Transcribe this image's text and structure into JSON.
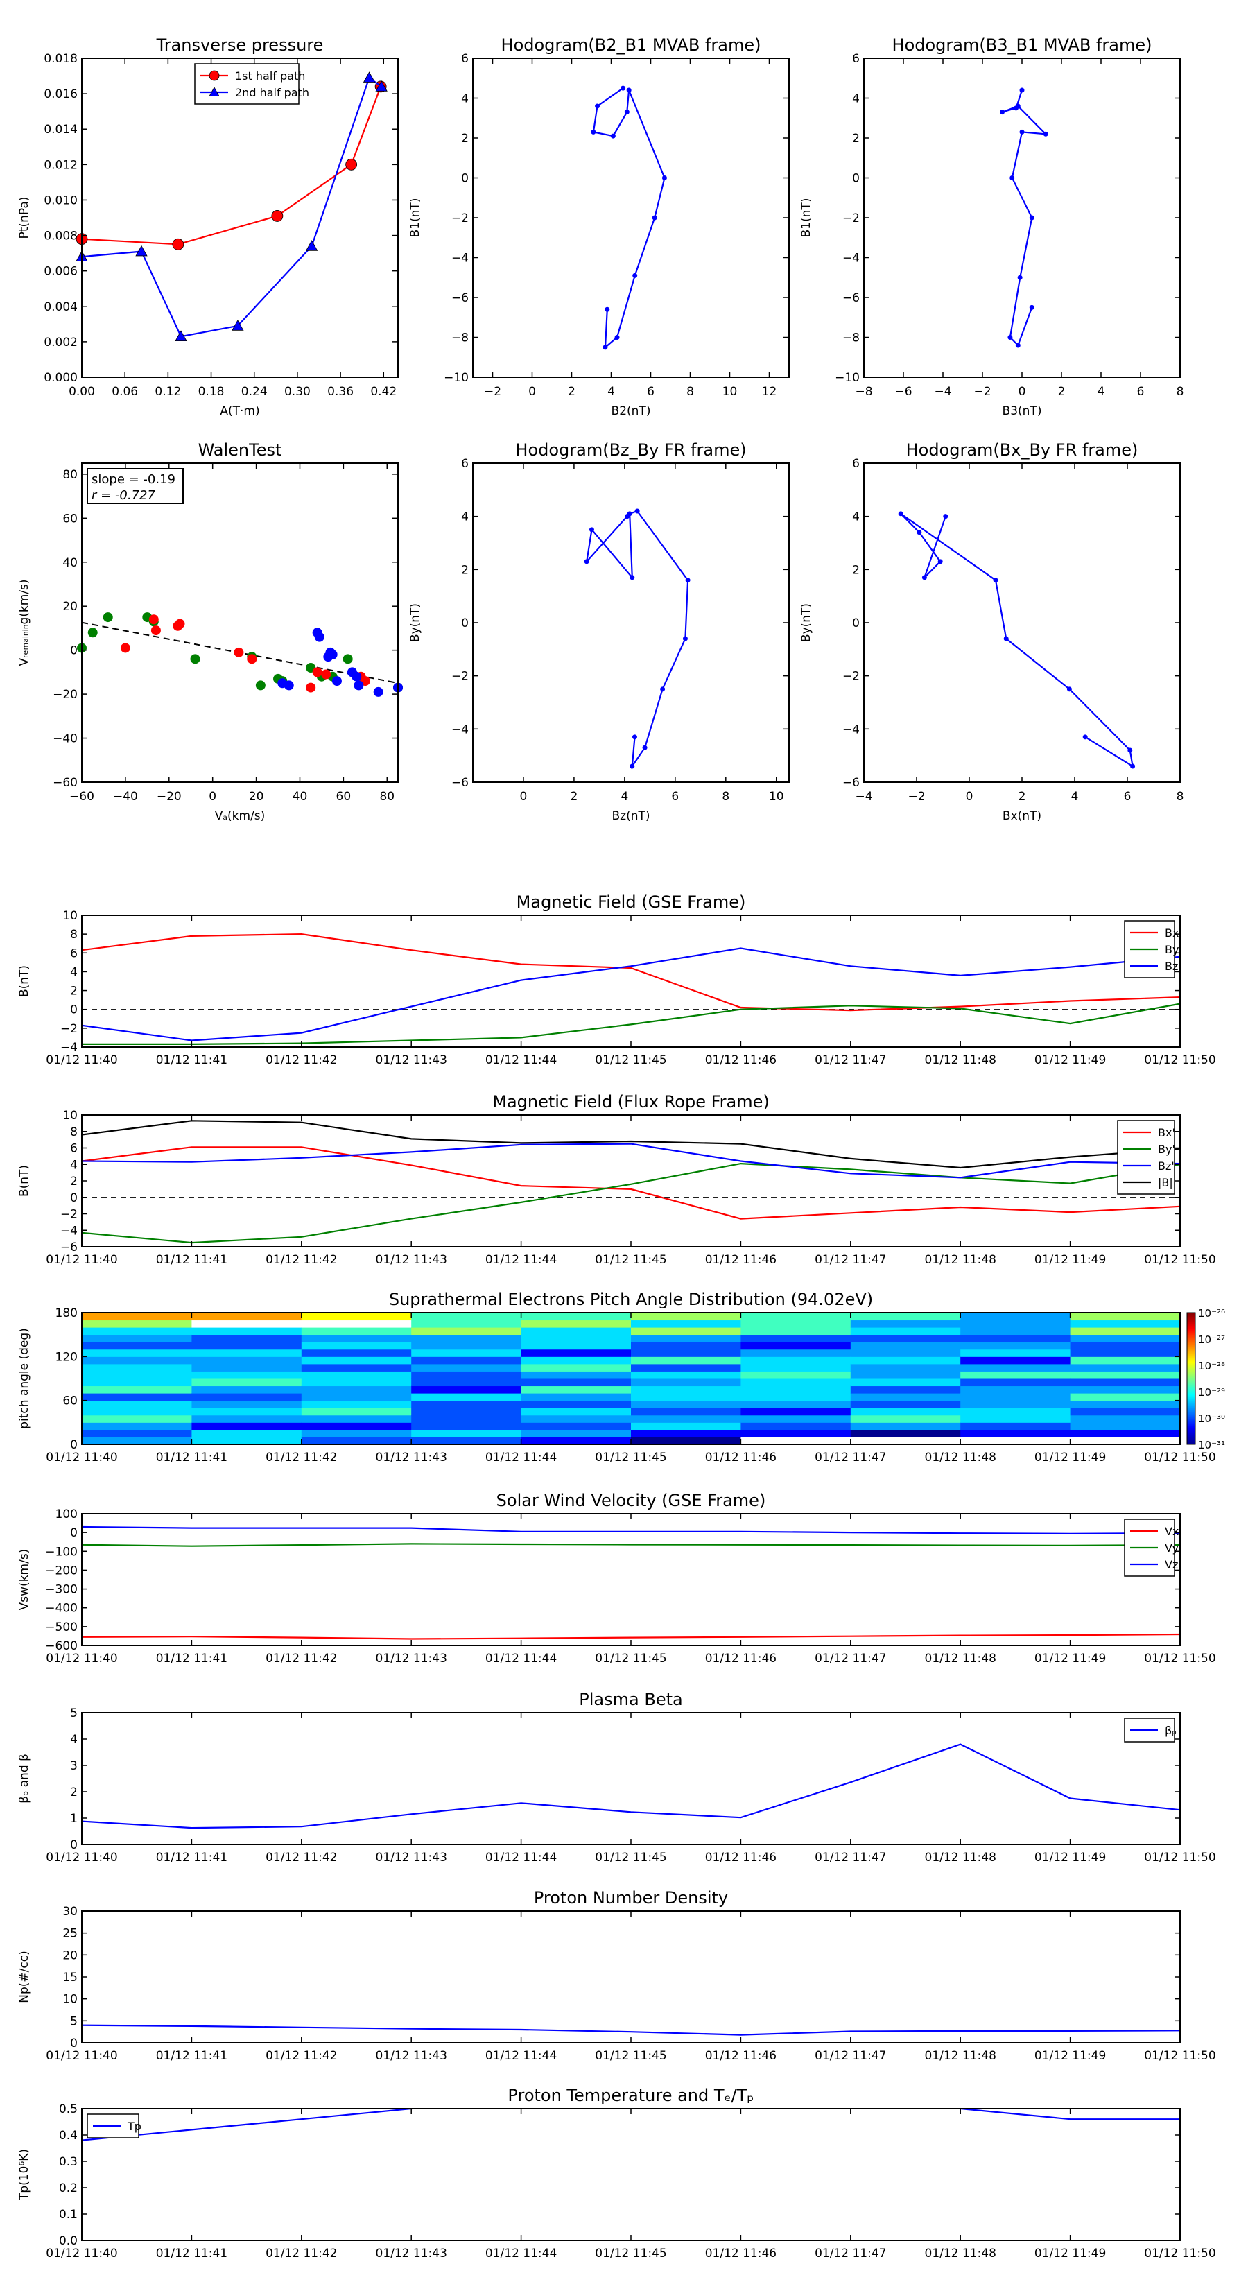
{
  "colors": {
    "red": "#ff0000",
    "green": "#008000",
    "blue": "#0000ff",
    "black": "#000000",
    "grid": "#808080"
  },
  "time_ticks": [
    "01/12 11:40",
    "01/12 11:41",
    "01/12 11:42",
    "01/12 11:43",
    "01/12 11:44",
    "01/12 11:45",
    "01/12 11:46",
    "01/12 11:47",
    "01/12 11:48",
    "01/12 11:49",
    "01/12 11:50"
  ],
  "chart_data": [
    {
      "id": "tp",
      "type": "line",
      "title": "Transverse pressure",
      "xlabel": "A(T·m)",
      "ylabel": "Pt(nPa)",
      "xlim": [
        0,
        0.44
      ],
      "ylim": [
        0,
        0.018
      ],
      "xticks": [
        0,
        0.06,
        0.12,
        0.18,
        0.24,
        0.3,
        0.36,
        0.42
      ],
      "xtick_labels": [
        "0.00",
        "0.06",
        "0.12",
        "0.18",
        "0.24",
        "0.30",
        "0.36",
        "0.42"
      ],
      "yticks": [
        0,
        0.002,
        0.004,
        0.006,
        0.008,
        0.01,
        0.012,
        0.014,
        0.016,
        0.018
      ],
      "ytick_labels": [
        "0.000",
        "0.002",
        "0.004",
        "0.006",
        "0.008",
        "0.010",
        "0.012",
        "0.014",
        "0.016",
        "0.018"
      ],
      "legend": "top-center",
      "series": [
        {
          "name": "1st half path",
          "color": "#ff0000",
          "marker": "circle",
          "x": [
            0.0,
            0.134,
            0.272,
            0.375,
            0.416
          ],
          "y": [
            0.0078,
            0.0075,
            0.0091,
            0.012,
            0.0164
          ]
        },
        {
          "name": "2nd half path",
          "color": "#0000ff",
          "marker": "triangle",
          "x": [
            0.0,
            0.083,
            0.138,
            0.217,
            0.32,
            0.4,
            0.417
          ],
          "y": [
            0.0068,
            0.0071,
            0.0023,
            0.0029,
            0.0074,
            0.0169,
            0.0164
          ]
        }
      ]
    },
    {
      "id": "h1",
      "type": "line",
      "title": "Hodogram(B2_B1 MVAB frame)",
      "xlabel": "B2(nT)",
      "ylabel": "B1(nT)",
      "xlim": [
        -3,
        13
      ],
      "ylim": [
        -10,
        6
      ],
      "xticks": [
        -2,
        0,
        2,
        4,
        6,
        8,
        10,
        12
      ],
      "xtick_labels": [
        "−2",
        "0",
        "2",
        "4",
        "6",
        "8",
        "10",
        "12"
      ],
      "yticks": [
        -10,
        -8,
        -6,
        -4,
        -2,
        0,
        2,
        4,
        6
      ],
      "ytick_labels": [
        "−10",
        "−8",
        "−6",
        "−4",
        "−2",
        "0",
        "2",
        "4",
        "6"
      ],
      "series": [
        {
          "name": "",
          "color": "#0000ff",
          "x": [
            3.8,
            3.7,
            4.3,
            5.2,
            6.2,
            6.7,
            4.9,
            4.8,
            4.1,
            3.1,
            3.3,
            4.6
          ],
          "y": [
            -6.6,
            -8.5,
            -8.0,
            -4.9,
            -2.0,
            0.0,
            4.4,
            3.3,
            2.1,
            2.3,
            3.6,
            4.5
          ]
        }
      ]
    },
    {
      "id": "h2",
      "type": "line",
      "title": "Hodogram(B3_B1 MVAB frame)",
      "xlabel": "B3(nT)",
      "ylabel": "B1(nT)",
      "xlim": [
        -8,
        8
      ],
      "ylim": [
        -10,
        6
      ],
      "xticks": [
        -8,
        -6,
        -4,
        -2,
        0,
        2,
        4,
        6,
        8
      ],
      "xtick_labels": [
        "−8",
        "−6",
        "−4",
        "−2",
        "0",
        "2",
        "4",
        "6",
        "8"
      ],
      "yticks": [
        -10,
        -8,
        -6,
        -4,
        -2,
        0,
        2,
        4,
        6
      ],
      "ytick_labels": [
        "−10",
        "−8",
        "−6",
        "−4",
        "−2",
        "0",
        "2",
        "4",
        "6"
      ],
      "series": [
        {
          "name": "",
          "color": "#0000ff",
          "x": [
            0.5,
            -0.2,
            -0.6,
            -0.1,
            0.5,
            -0.5,
            0.0,
            1.2,
            -0.2,
            -1.0,
            -0.3,
            0.0
          ],
          "y": [
            -6.5,
            -8.4,
            -8.0,
            -5.0,
            -2.0,
            0.0,
            2.3,
            2.2,
            3.6,
            3.3,
            3.5,
            4.4
          ]
        }
      ]
    },
    {
      "id": "walen",
      "type": "scatter",
      "title": "WalenTest",
      "xlabel": "Vₐ(km/s)",
      "ylabel": "Vᵣₑₘₐᵢₙᵢₙg(km/s)",
      "xlim": [
        -60,
        85
      ],
      "ylim": [
        -60,
        85
      ],
      "xticks": [
        -60,
        -40,
        -20,
        0,
        20,
        40,
        60,
        80
      ],
      "xtick_labels": [
        "−60",
        "−40",
        "−20",
        "0",
        "20",
        "40",
        "60",
        "80"
      ],
      "yticks": [
        -60,
        -40,
        -20,
        0,
        20,
        40,
        60,
        80
      ],
      "ytick_labels": [
        "−60",
        "−40",
        "−20",
        "0",
        "20",
        "40",
        "60",
        "80"
      ],
      "annotation": [
        "slope = -0.19",
        "r = -0.727"
      ],
      "fit": {
        "slope": -0.19,
        "intercept": 1.2,
        "color": "#000000"
      },
      "series": [
        {
          "name": "",
          "color": "#008000",
          "x": [
            -60,
            -55,
            -48,
            -30,
            -27,
            -8,
            18,
            22,
            30,
            32,
            45,
            50,
            55,
            62,
            85
          ],
          "y": [
            1,
            8,
            15,
            15,
            13,
            -4,
            -3,
            -16,
            -13,
            -14,
            -8,
            -12,
            -12,
            -4,
            -17
          ]
        },
        {
          "name": "",
          "color": "#ff0000",
          "x": [
            -40,
            -27,
            -26,
            -16,
            -15,
            12,
            18,
            45,
            48,
            52,
            68,
            70
          ],
          "y": [
            1,
            14,
            9,
            11,
            12,
            -1,
            -4,
            -17,
            -10,
            -11,
            -12,
            -14
          ]
        },
        {
          "name": "",
          "color": "#0000ff",
          "x": [
            32,
            35,
            48,
            49,
            53,
            54,
            55,
            57,
            64,
            66,
            67,
            76,
            85
          ],
          "y": [
            -15,
            -16,
            8,
            6,
            -3,
            -1,
            -2,
            -14,
            -10,
            -12,
            -16,
            -19,
            -17
          ]
        }
      ]
    },
    {
      "id": "h3",
      "type": "line",
      "title": "Hodogram(Bz_By FR frame)",
      "xlabel": "Bz(nT)",
      "ylabel": "By(nT)",
      "xlim": [
        -2,
        10.5
      ],
      "ylim": [
        -6,
        6
      ],
      "xticks": [
        0,
        2,
        4,
        6,
        8,
        10
      ],
      "xtick_labels": [
        "0",
        "2",
        "4",
        "6",
        "8",
        "10"
      ],
      "yticks": [
        -6,
        -4,
        -2,
        0,
        2,
        4,
        6
      ],
      "ytick_labels": [
        "−6",
        "−4",
        "−2",
        "0",
        "2",
        "4",
        "6"
      ],
      "series": [
        {
          "name": "",
          "color": "#0000ff",
          "x": [
            4.4,
            4.3,
            4.8,
            5.5,
            6.4,
            6.5,
            4.5,
            4.2,
            4.3,
            2.7,
            2.5,
            4.1
          ],
          "y": [
            -4.3,
            -5.4,
            -4.7,
            -2.5,
            -0.6,
            1.6,
            4.2,
            4.1,
            1.7,
            3.5,
            2.3,
            4.0
          ]
        }
      ]
    },
    {
      "id": "h4",
      "type": "line",
      "title": "Hodogram(Bx_By FR frame)",
      "xlabel": "Bx(nT)",
      "ylabel": "By(nT)",
      "xlim": [
        -4,
        8
      ],
      "ylim": [
        -6,
        6
      ],
      "xticks": [
        -4,
        -2,
        0,
        2,
        4,
        6,
        8
      ],
      "xtick_labels": [
        "−4",
        "−2",
        "0",
        "2",
        "4",
        "6",
        "8"
      ],
      "yticks": [
        -6,
        -4,
        -2,
        0,
        2,
        4,
        6
      ],
      "ytick_labels": [
        "−6",
        "−4",
        "−2",
        "0",
        "2",
        "4",
        "6"
      ],
      "series": [
        {
          "name": "",
          "color": "#0000ff",
          "x": [
            4.4,
            6.2,
            6.1,
            3.8,
            1.4,
            1.0,
            -2.6,
            -1.9,
            -1.1,
            -1.7,
            -0.9
          ],
          "y": [
            -4.3,
            -5.4,
            -4.8,
            -2.5,
            -0.6,
            1.6,
            4.1,
            3.4,
            2.3,
            1.7,
            4.0
          ]
        }
      ]
    },
    {
      "id": "bgse",
      "type": "line",
      "title": "Magnetic Field (GSE Frame)",
      "ylabel": "B(nT)",
      "xlim": [
        0,
        10
      ],
      "ylim": [
        -4,
        10
      ],
      "yticks": [
        -4,
        -2,
        0,
        2,
        4,
        6,
        8,
        10
      ],
      "ytick_labels": [
        "−4",
        "−2",
        "0",
        "2",
        "4",
        "6",
        "8",
        "10"
      ],
      "zero_line": true,
      "legend": "top-right",
      "x": [
        0,
        1,
        2,
        3,
        4,
        5,
        6,
        7,
        8,
        9,
        10
      ],
      "series": [
        {
          "name": "Bx",
          "color": "#ff0000",
          "values": [
            6.3,
            7.8,
            8.0,
            6.3,
            4.8,
            4.4,
            0.2,
            -0.1,
            0.3,
            0.9,
            1.3
          ]
        },
        {
          "name": "By",
          "color": "#008000",
          "values": [
            -3.7,
            -3.7,
            -3.6,
            -3.3,
            -3.0,
            -1.6,
            0.0,
            0.4,
            0.1,
            -1.5,
            0.6
          ]
        },
        {
          "name": "Bz",
          "color": "#0000ff",
          "values": [
            -1.7,
            -3.3,
            -2.5,
            0.3,
            3.1,
            4.6,
            6.5,
            4.6,
            3.6,
            4.5,
            5.6
          ]
        }
      ]
    },
    {
      "id": "bfr",
      "type": "line",
      "title": "Magnetic Field (Flux Rope Frame)",
      "ylabel": "B(nT)",
      "xlim": [
        0,
        10
      ],
      "ylim": [
        -6,
        10
      ],
      "yticks": [
        -6,
        -4,
        -2,
        0,
        2,
        4,
        6,
        8,
        10
      ],
      "ytick_labels": [
        "−6",
        "−4",
        "−2",
        "0",
        "2",
        "4",
        "6",
        "8",
        "10"
      ],
      "zero_line": true,
      "legend": "top-right",
      "x": [
        0,
        1,
        2,
        3,
        4,
        5,
        6,
        7,
        8,
        9,
        10
      ],
      "series": [
        {
          "name": "Bx'",
          "color": "#ff0000",
          "values": [
            4.4,
            6.1,
            6.1,
            3.9,
            1.4,
            1.0,
            -2.6,
            -1.9,
            -1.2,
            -1.8,
            -1.1
          ]
        },
        {
          "name": "By'",
          "color": "#008000",
          "values": [
            -4.3,
            -5.5,
            -4.8,
            -2.6,
            -0.6,
            1.6,
            4.1,
            3.4,
            2.4,
            1.7,
            4.0
          ]
        },
        {
          "name": "Bz'",
          "color": "#0000ff",
          "values": [
            4.4,
            4.3,
            4.8,
            5.5,
            6.4,
            6.5,
            4.4,
            2.9,
            2.4,
            4.3,
            4.1
          ]
        },
        {
          "name": "|B|",
          "color": "#000000",
          "values": [
            7.6,
            9.3,
            9.1,
            7.1,
            6.6,
            6.8,
            6.5,
            4.7,
            3.6,
            4.9,
            5.9
          ]
        }
      ]
    },
    {
      "id": "pad",
      "type": "heatmap",
      "title": "Suprathermal Electrons Pitch Angle Distribution (94.02eV)",
      "ylabel": "pitch angle (deg)",
      "xlim": [
        0,
        10
      ],
      "ylim": [
        0,
        180
      ],
      "yticks": [
        0,
        60,
        120,
        180
      ],
      "ytick_labels": [
        "0",
        "60",
        "120",
        "180"
      ],
      "colorbar": {
        "labels": [
          "10⁻²⁶",
          "10⁻²⁷",
          "10⁻²⁸",
          "10⁻²⁹",
          "10⁻³⁰",
          "10⁻³¹"
        ]
      }
    },
    {
      "id": "vsw",
      "type": "line",
      "title": "Solar Wind Velocity (GSE Frame)",
      "ylabel": "Vsw(km/s)",
      "xlim": [
        0,
        10
      ],
      "ylim": [
        -600,
        100
      ],
      "yticks": [
        -600,
        -500,
        -400,
        -300,
        -200,
        -100,
        0,
        100
      ],
      "ytick_labels": [
        "−600",
        "−500",
        "−400",
        "−300",
        "−200",
        "−100",
        "0",
        "100"
      ],
      "legend": "top-right",
      "x": [
        0,
        1,
        2,
        3,
        4,
        5,
        6,
        7,
        8,
        9,
        10
      ],
      "series": [
        {
          "name": "Vx",
          "color": "#ff0000",
          "values": [
            -555,
            -553,
            -558,
            -565,
            -562,
            -558,
            -555,
            -551,
            -547,
            -545,
            -541
          ]
        },
        {
          "name": "Vy",
          "color": "#008000",
          "values": [
            -65,
            -72,
            -66,
            -60,
            -62,
            -64,
            -65,
            -66,
            -68,
            -69,
            -66
          ]
        },
        {
          "name": "Vz",
          "color": "#0000ff",
          "values": [
            30,
            24,
            24,
            24,
            5,
            5,
            5,
            0,
            -4,
            -6,
            -3
          ]
        }
      ]
    },
    {
      "id": "beta",
      "type": "line",
      "title": "Plasma Beta",
      "ylabel": "βₚ and β",
      "xlim": [
        0,
        10
      ],
      "ylim": [
        0,
        5
      ],
      "yticks": [
        0,
        1,
        2,
        3,
        4,
        5
      ],
      "ytick_labels": [
        "0",
        "1",
        "2",
        "3",
        "4",
        "5"
      ],
      "legend": "top-right",
      "x": [
        0,
        1,
        2,
        3,
        4,
        5,
        6,
        7,
        8,
        9,
        10
      ],
      "series": [
        {
          "name": "βₚ",
          "color": "#0000ff",
          "values": [
            0.88,
            0.63,
            0.68,
            1.15,
            1.57,
            1.23,
            1.02,
            2.36,
            3.8,
            1.75,
            1.31
          ]
        }
      ]
    },
    {
      "id": "np",
      "type": "line",
      "title": "Proton Number Density",
      "ylabel": "Np(#/cc)",
      "xlim": [
        0,
        10
      ],
      "ylim": [
        0,
        30
      ],
      "yticks": [
        0,
        5,
        10,
        15,
        20,
        25,
        30
      ],
      "ytick_labels": [
        "0",
        "5",
        "10",
        "15",
        "20",
        "25",
        "30"
      ],
      "x": [
        0,
        1,
        2,
        3,
        4,
        5,
        6,
        7,
        8,
        9,
        10
      ],
      "series": [
        {
          "name": "",
          "color": "#0000ff",
          "values": [
            4.0,
            3.8,
            3.5,
            3.2,
            3.0,
            2.5,
            1.8,
            2.6,
            2.7,
            2.7,
            2.8
          ]
        }
      ]
    },
    {
      "id": "tpr",
      "type": "line",
      "title": "Proton Temperature and Tₑ/Tₚ",
      "ylabel": "Tp(10⁶K)",
      "xlim": [
        0,
        10
      ],
      "ylim": [
        0,
        0.5
      ],
      "yticks": [
        0,
        0.1,
        0.2,
        0.3,
        0.4,
        0.5
      ],
      "ytick_labels": [
        "0.0",
        "0.1",
        "0.2",
        "0.3",
        "0.4",
        "0.5"
      ],
      "legend": "top-left",
      "x": [
        0,
        1,
        2,
        3,
        4,
        5,
        6,
        7,
        8,
        9,
        10
      ],
      "series": [
        {
          "name": "Tp",
          "color": "#0000ff",
          "values": [
            0.38,
            0.42,
            0.46,
            0.5,
            0.52,
            0.54,
            0.55,
            0.54,
            0.5,
            0.46,
            0.46
          ]
        }
      ]
    }
  ]
}
